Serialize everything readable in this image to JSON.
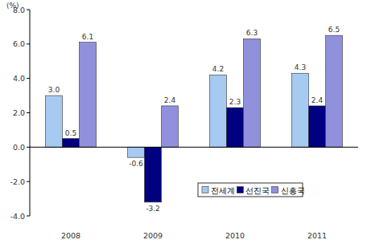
{
  "chart_data": {
    "type": "bar",
    "y_label": "(%)",
    "categories": [
      "2008",
      "2009",
      "2010",
      "2011"
    ],
    "series": [
      {
        "name": "전세계",
        "color": "#a6caf0",
        "values": [
          3.0,
          -0.6,
          4.2,
          4.3
        ],
        "value_labels": [
          "3.0",
          "-0.6",
          "4.2",
          "4.3"
        ]
      },
      {
        "name": "선진국",
        "color": "#000080",
        "values": [
          0.5,
          -3.2,
          2.3,
          2.4
        ],
        "value_labels": [
          "0.5",
          "-3.2",
          "2.3",
          "2.4"
        ]
      },
      {
        "name": "신흥국",
        "color": "#9090dc",
        "values": [
          6.1,
          2.4,
          6.3,
          6.5
        ],
        "value_labels": [
          "6.1",
          "2.4",
          "6.3",
          "6.5"
        ]
      }
    ],
    "ylim": [
      -4,
      8
    ],
    "yticks": [
      {
        "value": -4,
        "label": "-4.0"
      },
      {
        "value": -2,
        "label": "-2.0"
      },
      {
        "value": 0,
        "label": "0.0"
      },
      {
        "value": 2,
        "label": "2.0"
      },
      {
        "value": 4,
        "label": "4.0"
      },
      {
        "value": 6,
        "label": "6.0"
      },
      {
        "value": 8,
        "label": "8.0"
      }
    ],
    "grid": false,
    "legend": "right",
    "data_labels": true
  }
}
